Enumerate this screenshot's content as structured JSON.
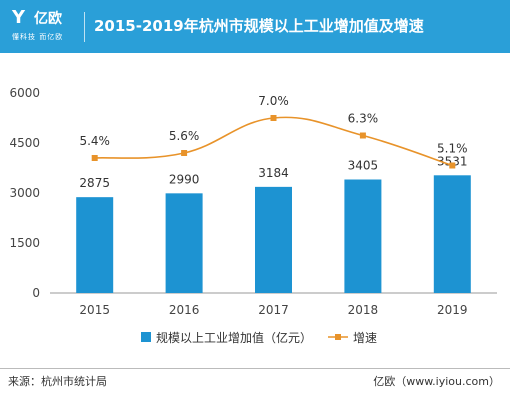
{
  "header": {
    "logo_text": "亿欧",
    "logo_mark": "Y",
    "logo_slogan": "懂科技 而亿欧",
    "title": "2015-2019年杭州市规模以上工业增加值及增速"
  },
  "colors": {
    "header_bg": "#2a9fd8",
    "bar": "#1d93d2",
    "line": "#e8932a"
  },
  "chart_data": {
    "type": "bar",
    "categories": [
      "2015",
      "2016",
      "2017",
      "2018",
      "2019"
    ],
    "series": [
      {
        "name": "规模以上工业增加值（亿元）",
        "type": "bar",
        "axis": "left",
        "values": [
          2875,
          2990,
          3184,
          3405,
          3531
        ],
        "labels": [
          "2875",
          "2990",
          "3184",
          "3405",
          "3531"
        ]
      },
      {
        "name": "增速",
        "type": "line",
        "axis": "right",
        "values": [
          5.4,
          5.6,
          7.0,
          6.3,
          5.1
        ],
        "labels": [
          "5.4%",
          "5.6%",
          "7.0%",
          "6.3%",
          "5.1%"
        ]
      }
    ],
    "yticks": [
      "0",
      "1500",
      "3000",
      "4500",
      "6000"
    ],
    "ylim": [
      0,
      6000
    ],
    "y2lim": [
      0,
      8.0
    ],
    "grid": false,
    "legend": "bottom"
  },
  "footer": {
    "source": "来源：杭州市统计局",
    "credit": "亿欧（www.iyiou.com）"
  }
}
